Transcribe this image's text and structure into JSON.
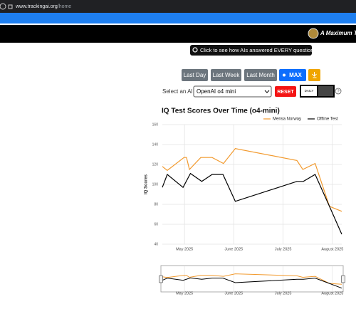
{
  "browser": {
    "url_host": "www.trackingai.org",
    "url_path": "/home"
  },
  "header": {
    "brand": "A Maximum Tru"
  },
  "banner_button": "Click to see how AIs answered EVERY question",
  "range_buttons": [
    "Last Day",
    "Last Week",
    "Last Month",
    "MAX"
  ],
  "controls": {
    "select_label": "Select an AI:",
    "selected_ai": "OpenAI o4 mini",
    "reset": "RESET",
    "toggle": "DAILY",
    "help": "?"
  },
  "chart_data": {
    "type": "line",
    "title": "IQ Test Scores Over Time (o4-mini)",
    "y_label": "IQ Scores",
    "xlim": [
      4.55,
      8.19
    ],
    "xticks": [
      {
        "value": 5,
        "label": "May 2025"
      },
      {
        "value": 6,
        "label": "June 2025"
      },
      {
        "value": 7,
        "label": "July 2025"
      },
      {
        "value": 8,
        "label": "August 2025"
      }
    ],
    "ylim": [
      40,
      160
    ],
    "yticks": [
      40,
      60,
      80,
      100,
      120,
      140,
      160
    ],
    "grid": true,
    "legend": "top-right",
    "series": [
      {
        "name": "Mensa Norway",
        "color": "#f29a2e",
        "x": [
          4.55,
          4.65,
          4.99,
          5.04,
          5.1,
          5.33,
          5.56,
          5.79,
          6.03,
          7.28,
          7.4,
          7.65,
          7.94,
          8.19
        ],
        "values": [
          118,
          114,
          127,
          127,
          115,
          127,
          127,
          121,
          136,
          124,
          115,
          121,
          78,
          73
        ]
      },
      {
        "name": "Offline Test",
        "color": "#000000",
        "x": [
          4.55,
          4.65,
          4.97,
          5.12,
          5.35,
          5.56,
          5.78,
          6.03,
          7.28,
          7.41,
          7.65,
          7.94,
          8.19
        ],
        "values": [
          97,
          110,
          97,
          111,
          103,
          110,
          110,
          83,
          103,
          103,
          110,
          78,
          50
        ]
      }
    ]
  }
}
